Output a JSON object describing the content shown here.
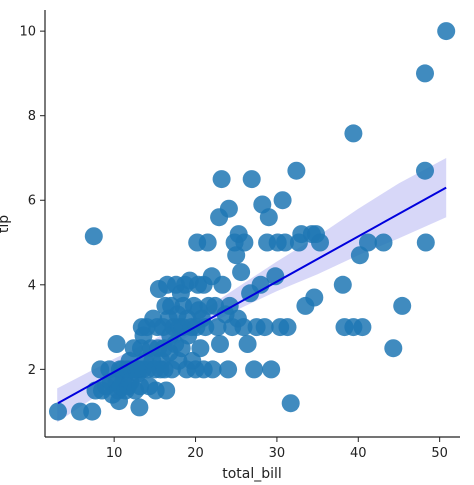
{
  "chart_data": {
    "type": "scatter",
    "xlabel": "total_bill",
    "ylabel": "tip",
    "xlim": [
      1.5,
      52.5
    ],
    "ylim": [
      0.4,
      10.5
    ],
    "xticks": [
      10,
      20,
      30,
      40,
      50
    ],
    "yticks": [
      2,
      4,
      6,
      8,
      10
    ],
    "grid": false,
    "legend": "none",
    "colors": {
      "points": "#1f77b4",
      "regression": "#0000dd",
      "ci_band": "#c9c9f5"
    },
    "regression": {
      "x_start": 3.1,
      "y_start": 1.2,
      "x_end": 50.8,
      "y_end": 6.3
    },
    "ci_band": {
      "x": [
        3,
        10,
        15,
        20,
        25,
        30,
        35,
        40,
        45,
        50.8
      ],
      "upper": [
        1.55,
        2.25,
        2.72,
        3.28,
        3.92,
        4.55,
        5.15,
        5.8,
        6.4,
        7.0
      ],
      "lower": [
        0.75,
        1.65,
        2.25,
        2.9,
        3.4,
        3.85,
        4.25,
        4.7,
        5.1,
        5.6
      ]
    },
    "points": [
      [
        3.1,
        1.0
      ],
      [
        5.8,
        1.0
      ],
      [
        7.3,
        1.0
      ],
      [
        7.7,
        1.5
      ],
      [
        7.5,
        5.15
      ],
      [
        8.3,
        2.0
      ],
      [
        8.5,
        1.5
      ],
      [
        9.0,
        1.6
      ],
      [
        9.4,
        2.0
      ],
      [
        9.6,
        1.7
      ],
      [
        9.8,
        1.4
      ],
      [
        10.3,
        1.7
      ],
      [
        10.3,
        2.6
      ],
      [
        10.5,
        1.5
      ],
      [
        10.6,
        1.25
      ],
      [
        10.7,
        2.0
      ],
      [
        10.8,
        1.6
      ],
      [
        11.0,
        2.0
      ],
      [
        11.2,
        1.8
      ],
      [
        11.4,
        1.5
      ],
      [
        11.6,
        2.0
      ],
      [
        11.7,
        1.6
      ],
      [
        11.9,
        2.2
      ],
      [
        12.0,
        1.7
      ],
      [
        12.2,
        2.0
      ],
      [
        12.4,
        2.5
      ],
      [
        12.6,
        1.5
      ],
      [
        12.7,
        2.0
      ],
      [
        12.9,
        1.9
      ],
      [
        13.0,
        2.0
      ],
      [
        13.1,
        1.1
      ],
      [
        13.2,
        1.6
      ],
      [
        13.3,
        2.5
      ],
      [
        13.4,
        3.0
      ],
      [
        13.5,
        2.0
      ],
      [
        13.6,
        2.8
      ],
      [
        13.8,
        2.2
      ],
      [
        14.0,
        3.0
      ],
      [
        14.1,
        2.0
      ],
      [
        14.3,
        1.6
      ],
      [
        14.5,
        2.5
      ],
      [
        14.7,
        2.2
      ],
      [
        14.8,
        3.2
      ],
      [
        15.0,
        2.0
      ],
      [
        15.1,
        1.5
      ],
      [
        15.3,
        3.0
      ],
      [
        15.4,
        2.5
      ],
      [
        15.5,
        3.9
      ],
      [
        15.7,
        2.0
      ],
      [
        15.8,
        2.2
      ],
      [
        16.0,
        3.0
      ],
      [
        16.1,
        2.5
      ],
      [
        16.2,
        2.0
      ],
      [
        16.3,
        3.5
      ],
      [
        16.4,
        1.5
      ],
      [
        16.5,
        4.0
      ],
      [
        16.7,
        3.2
      ],
      [
        16.8,
        2.4
      ],
      [
        16.9,
        2.8
      ],
      [
        17.0,
        3.5
      ],
      [
        17.1,
        2.0
      ],
      [
        17.3,
        3.0
      ],
      [
        17.5,
        2.6
      ],
      [
        17.6,
        4.0
      ],
      [
        17.8,
        3.3
      ],
      [
        17.9,
        2.2
      ],
      [
        18.0,
        3.0
      ],
      [
        18.2,
        3.8
      ],
      [
        18.3,
        2.5
      ],
      [
        18.4,
        3.0
      ],
      [
        18.5,
        3.5
      ],
      [
        18.7,
        4.0
      ],
      [
        18.9,
        2.0
      ],
      [
        19.0,
        3.2
      ],
      [
        19.1,
        2.8
      ],
      [
        19.3,
        4.1
      ],
      [
        19.5,
        3.0
      ],
      [
        19.6,
        2.2
      ],
      [
        19.8,
        3.5
      ],
      [
        20.0,
        2.0
      ],
      [
        20.1,
        3.0
      ],
      [
        20.2,
        5.0
      ],
      [
        20.3,
        4.0
      ],
      [
        20.4,
        3.4
      ],
      [
        20.6,
        2.5
      ],
      [
        20.8,
        3.2
      ],
      [
        21.0,
        2.0
      ],
      [
        21.0,
        4.0
      ],
      [
        21.2,
        3.0
      ],
      [
        21.5,
        5.0
      ],
      [
        21.6,
        3.5
      ],
      [
        22.0,
        4.2
      ],
      [
        22.1,
        2.0
      ],
      [
        22.4,
        3.5
      ],
      [
        22.7,
        3.0
      ],
      [
        22.9,
        5.6
      ],
      [
        23.0,
        2.6
      ],
      [
        23.2,
        6.5
      ],
      [
        23.3,
        4.0
      ],
      [
        23.7,
        3.3
      ],
      [
        24.0,
        2.0
      ],
      [
        24.1,
        5.8
      ],
      [
        24.2,
        3.5
      ],
      [
        24.5,
        3.0
      ],
      [
        24.8,
        5.0
      ],
      [
        25.0,
        4.7
      ],
      [
        25.2,
        3.2
      ],
      [
        25.3,
        5.2
      ],
      [
        25.6,
        4.3
      ],
      [
        25.9,
        3.0
      ],
      [
        26.0,
        5.0
      ],
      [
        26.4,
        2.6
      ],
      [
        26.7,
        3.8
      ],
      [
        26.9,
        6.5
      ],
      [
        27.2,
        2.0
      ],
      [
        27.5,
        3.0
      ],
      [
        28.0,
        4.0
      ],
      [
        28.2,
        5.9
      ],
      [
        28.5,
        3.0
      ],
      [
        28.8,
        5.0
      ],
      [
        29.0,
        5.6
      ],
      [
        29.3,
        2.0
      ],
      [
        29.8,
        4.2
      ],
      [
        30.1,
        5.0
      ],
      [
        30.4,
        3.0
      ],
      [
        30.7,
        6.0
      ],
      [
        31.0,
        5.0
      ],
      [
        31.3,
        3.0
      ],
      [
        31.7,
        1.2
      ],
      [
        32.4,
        6.7
      ],
      [
        32.7,
        5.0
      ],
      [
        33.0,
        5.2
      ],
      [
        33.5,
        3.5
      ],
      [
        34.3,
        5.2
      ],
      [
        34.6,
        3.7
      ],
      [
        34.8,
        5.2
      ],
      [
        35.3,
        5.0
      ],
      [
        38.1,
        4.0
      ],
      [
        38.3,
        3.0
      ],
      [
        39.4,
        3.0
      ],
      [
        39.4,
        7.58
      ],
      [
        40.2,
        4.7
      ],
      [
        40.5,
        3.0
      ],
      [
        41.2,
        5.0
      ],
      [
        43.1,
        5.0
      ],
      [
        44.3,
        2.5
      ],
      [
        45.4,
        3.5
      ],
      [
        48.2,
        9.0
      ],
      [
        48.2,
        6.7
      ],
      [
        48.3,
        5.0
      ],
      [
        50.8,
        10.0
      ]
    ]
  }
}
